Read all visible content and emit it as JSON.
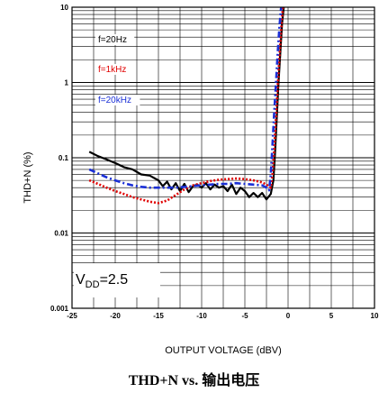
{
  "caption": "THD+N vs. 输出电压",
  "chart_data": {
    "type": "line",
    "title": "",
    "xlabel": "OUTPUT VOLTAGE (dBV)",
    "ylabel": "THD+N (%)",
    "xlim": [
      -25,
      10
    ],
    "ylim": [
      0.001,
      10
    ],
    "y_scale": "log",
    "x_ticks": [
      -25,
      -20,
      -15,
      -10,
      -5,
      0,
      5,
      10
    ],
    "y_ticks": [
      0.001,
      0.01,
      0.1,
      1,
      10
    ],
    "x_tick_labels": [
      "-25",
      "-20",
      "-15",
      "-10",
      "-5",
      "0",
      "5",
      "10"
    ],
    "y_tick_labels": [
      "0.001",
      "0.01",
      "0.1",
      "1",
      "10"
    ],
    "grid": true,
    "legend_position": "top-left",
    "annotation": {
      "main": "V",
      "sub": "DD",
      "rest": "=2.5"
    },
    "series": [
      {
        "name": "f=20Hz",
        "color": "#000000",
        "style": "solid",
        "x": [
          -23,
          -22,
          -21,
          -20,
          -19,
          -18,
          -17,
          -16,
          -15,
          -14.5,
          -14,
          -13.5,
          -13,
          -12.5,
          -12,
          -11.5,
          -11,
          -10.5,
          -10,
          -9.5,
          -9,
          -8.5,
          -8,
          -7.5,
          -7,
          -6.5,
          -6,
          -5.5,
          -5,
          -4.5,
          -4,
          -3.5,
          -3,
          -2.5,
          -2,
          -1.7,
          -1.5,
          -1.3,
          -1.1,
          -0.9,
          -0.7,
          -0.5
        ],
        "y": [
          0.12,
          0.105,
          0.095,
          0.085,
          0.075,
          0.07,
          0.06,
          0.058,
          0.05,
          0.042,
          0.048,
          0.038,
          0.046,
          0.036,
          0.045,
          0.035,
          0.042,
          0.044,
          0.04,
          0.046,
          0.038,
          0.044,
          0.04,
          0.042,
          0.036,
          0.044,
          0.033,
          0.04,
          0.036,
          0.03,
          0.034,
          0.03,
          0.034,
          0.028,
          0.033,
          0.05,
          0.12,
          0.35,
          1.0,
          2.5,
          6.0,
          10
        ]
      },
      {
        "name": "f=1kHz",
        "color": "#e00000",
        "style": "dotted",
        "x": [
          -23,
          -22,
          -21,
          -20,
          -19,
          -18,
          -17,
          -16,
          -15,
          -14,
          -13,
          -12,
          -11,
          -10,
          -9,
          -8,
          -7,
          -6,
          -5,
          -4,
          -3,
          -2.5,
          -2,
          -1.8,
          -1.6,
          -1.4,
          -1.2,
          -1.0,
          -0.8,
          -0.6
        ],
        "y": [
          0.05,
          0.045,
          0.04,
          0.036,
          0.033,
          0.03,
          0.028,
          0.026,
          0.025,
          0.027,
          0.032,
          0.038,
          0.043,
          0.046,
          0.049,
          0.051,
          0.052,
          0.053,
          0.052,
          0.05,
          0.047,
          0.044,
          0.04,
          0.06,
          0.13,
          0.35,
          0.9,
          2.2,
          5.0,
          10
        ]
      },
      {
        "name": "f=20kHz",
        "color": "#1a2fd6",
        "style": "dashdot",
        "x": [
          -23,
          -22,
          -21,
          -20,
          -19,
          -18,
          -17,
          -16,
          -15,
          -14,
          -13,
          -12,
          -11,
          -10,
          -9,
          -8,
          -7,
          -6,
          -5,
          -4,
          -3,
          -2.5,
          -2.2,
          -2.0,
          -1.8,
          -1.6,
          -1.4,
          -1.2,
          -1.0,
          -0.8
        ],
        "y": [
          0.07,
          0.062,
          0.055,
          0.05,
          0.046,
          0.043,
          0.041,
          0.04,
          0.04,
          0.04,
          0.04,
          0.041,
          0.042,
          0.043,
          0.044,
          0.045,
          0.045,
          0.046,
          0.045,
          0.044,
          0.043,
          0.04,
          0.037,
          0.06,
          0.15,
          0.4,
          1.0,
          2.5,
          5.5,
          10
        ]
      }
    ]
  }
}
